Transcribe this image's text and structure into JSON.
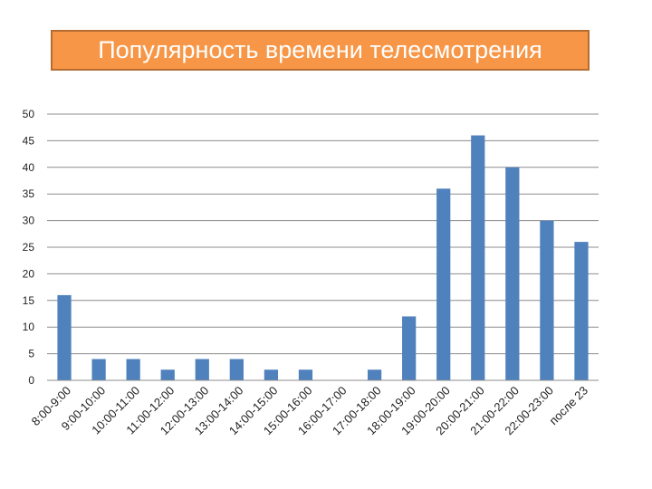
{
  "title": "Популярность времени телесмотрения",
  "chart_data": {
    "type": "bar",
    "title": "Популярность времени телесмотрения",
    "xlabel": "",
    "ylabel": "",
    "ylim": [
      0,
      50
    ],
    "yticks": [
      0,
      5,
      10,
      15,
      20,
      25,
      30,
      35,
      40,
      45,
      50
    ],
    "grid": true,
    "legend": "none",
    "bar_color": "#4f81bd",
    "categories": [
      "8:00-9:00",
      "9:00-10:00",
      "10:00-11:00",
      "11:00-12:00",
      "12:00-13:00",
      "13:00-14:00",
      "14:00-15:00",
      "15:00-16:00",
      "16:00-17:00",
      "17:00-18:00",
      "18:00-19:00",
      "19:00-20:00",
      "20:00-21:00",
      "21:00-22:00",
      "22:00-23:00",
      "после 23"
    ],
    "values": [
      16,
      4,
      4,
      2,
      4,
      4,
      2,
      2,
      0,
      2,
      12,
      36,
      46,
      40,
      30,
      26
    ]
  }
}
